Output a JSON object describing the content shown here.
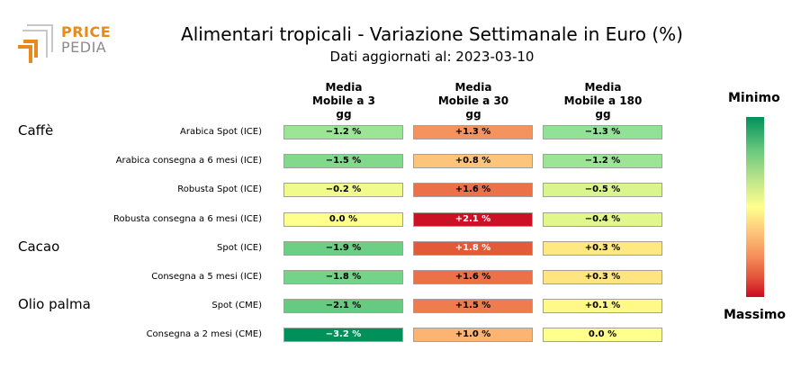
{
  "logo": {
    "line1": "PRICE",
    "line2": "PEDIA"
  },
  "chart_data": {
    "type": "table",
    "title": "Alimentari tropicali - Variazione Settimanale in Euro (%)",
    "subtitle": "Dati aggiornati al: 2023-03-10",
    "columns": [
      "Media\nMobile a 3\ngg",
      "Media\nMobile a 30\ngg",
      "Media\nMobile a 180\ngg"
    ],
    "groups": [
      {
        "name": "Caffè",
        "start_row": 0
      },
      {
        "name": "Cacao",
        "start_row": 4
      },
      {
        "name": "Olio palma",
        "start_row": 6
      }
    ],
    "rows": [
      {
        "label": "Arabica Spot (ICE)",
        "values": [
          -1.2,
          1.3,
          -1.3
        ],
        "texts": [
          "−1.2 %",
          "+1.3 %",
          "−1.3 %"
        ],
        "colors": [
          "#9ce595",
          "#f4935d",
          "#91e196"
        ]
      },
      {
        "label": "Arabica consegna a 6 mesi (ICE)",
        "values": [
          -1.5,
          0.8,
          -1.2
        ],
        "texts": [
          "−1.5 %",
          "+0.8 %",
          "−1.2 %"
        ],
        "colors": [
          "#81d98b",
          "#fdc47b",
          "#9ce595"
        ]
      },
      {
        "label": "Robusta Spot (ICE)",
        "values": [
          -0.2,
          1.6,
          -0.5
        ],
        "texts": [
          "−0.2 %",
          "+1.6 %",
          "−0.5 %"
        ],
        "colors": [
          "#f1fb8b",
          "#ed7148",
          "#d9f58c"
        ]
      },
      {
        "label": "Robusta consegna a 6 mesi (ICE)",
        "values": [
          0.0,
          2.1,
          -0.4
        ],
        "texts": [
          "0.0 %",
          "+2.1 %",
          "−0.4 %"
        ],
        "colors": [
          "#ffff8c",
          "#cc1124",
          "#e1f78b"
        ]
      },
      {
        "label": "Spot (ICE)",
        "values": [
          -1.9,
          1.8,
          0.3
        ],
        "texts": [
          "−1.9 %",
          "+1.8 %",
          "+0.3 %"
        ],
        "colors": [
          "#6ccf84",
          "#e25a38",
          "#ffe87f"
        ]
      },
      {
        "label": "Consegna a 5 mesi (ICE)",
        "values": [
          -1.8,
          1.6,
          0.3
        ],
        "texts": [
          "−1.8 %",
          "+1.6 %",
          "+0.3 %"
        ],
        "colors": [
          "#74d386",
          "#ed7148",
          "#ffe47f"
        ]
      },
      {
        "label": "Spot (CME)",
        "values": [
          -2.1,
          1.5,
          0.1
        ],
        "texts": [
          "−2.1 %",
          "+1.5 %",
          "+0.1 %"
        ],
        "colors": [
          "#66cb80",
          "#ef7c4e",
          "#fff988"
        ]
      },
      {
        "label": "Consegna a 2 mesi (CME)",
        "values": [
          -3.2,
          1.0,
          0.0
        ],
        "texts": [
          "−3.2 %",
          "+1.0 %",
          "0.0 %"
        ],
        "colors": [
          "#00915a",
          "#fdb472",
          "#ffff8c"
        ]
      }
    ],
    "legend": {
      "top_label": "Minimo",
      "bottom_label": "Massimo",
      "top_color": "#00915a",
      "mid_color": "#ffff8c",
      "bottom_color": "#cc0a23"
    }
  }
}
